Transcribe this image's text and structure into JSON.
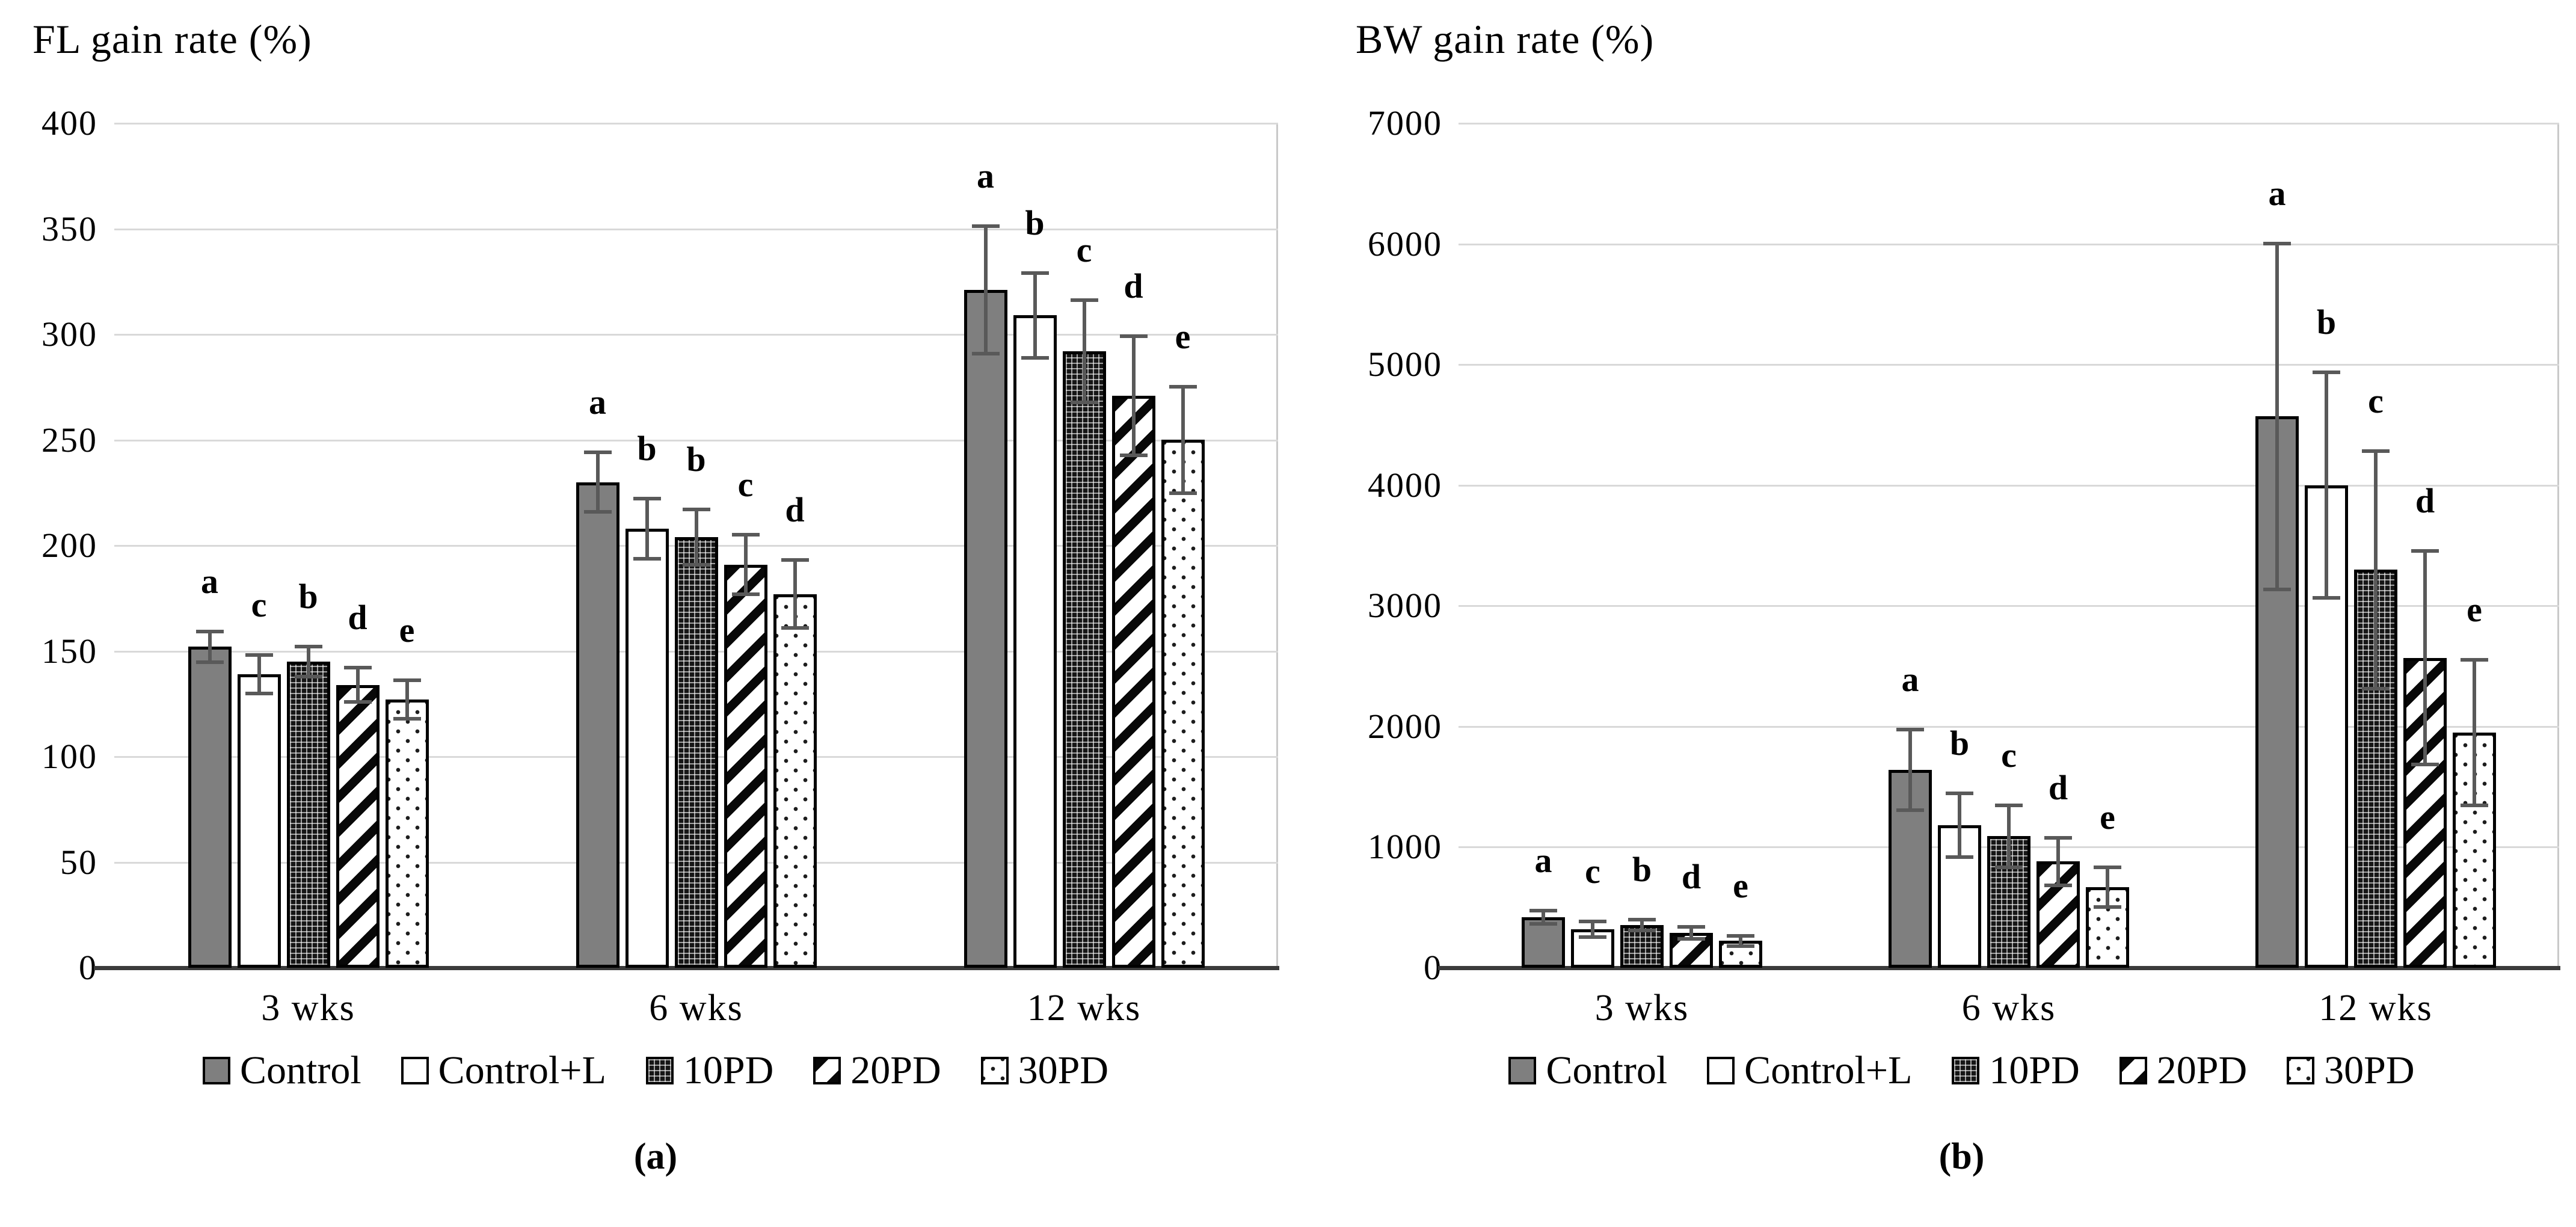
{
  "figure": {
    "captions": {
      "a": "(a)",
      "b": "(b)"
    }
  },
  "chart_data": [
    {
      "type": "bar",
      "title": "FL gain rate (%)",
      "panel_label": "(a)",
      "categories": [
        "3 wks",
        "6 wks",
        "12 wks"
      ],
      "ylim": [
        0,
        400
      ],
      "ytick_step": 50,
      "yticks": [
        "0",
        "50",
        "100",
        "150",
        "200",
        "250",
        "300",
        "350",
        "400"
      ],
      "grid": true,
      "legend_position": "bottom",
      "series": [
        {
          "name": "Control",
          "pattern": "solid-gray",
          "values": [
            152,
            230,
            321
          ],
          "errors": [
            8,
            15,
            31
          ],
          "sig_letters": [
            "a",
            "a",
            "a"
          ]
        },
        {
          "name": "Control+L",
          "pattern": "white",
          "values": [
            139,
            208,
            309
          ],
          "errors": [
            10,
            15,
            21
          ],
          "sig_letters": [
            "c",
            "b",
            "b"
          ]
        },
        {
          "name": "10PD",
          "pattern": "dense-check",
          "values": [
            145,
            204,
            292
          ],
          "errors": [
            8,
            14,
            25
          ],
          "sig_letters": [
            "b",
            "b",
            "c"
          ]
        },
        {
          "name": "20PD",
          "pattern": "diag-stripe",
          "values": [
            134,
            191,
            271
          ],
          "errors": [
            9,
            15,
            29
          ],
          "sig_letters": [
            "d",
            "c",
            "d"
          ]
        },
        {
          "name": "30PD",
          "pattern": "light-dots",
          "values": [
            127,
            177,
            250
          ],
          "errors": [
            10,
            17,
            26
          ],
          "sig_letters": [
            "e",
            "d",
            "e"
          ]
        }
      ]
    },
    {
      "type": "bar",
      "title": "BW gain rate (%)",
      "panel_label": "(b)",
      "categories": [
        "3 wks",
        "6 wks",
        "12 wks"
      ],
      "ylim": [
        0,
        7000
      ],
      "ytick_step": 1000,
      "yticks": [
        "0",
        "1000",
        "2000",
        "3000",
        "4000",
        "5000",
        "6000",
        "7000"
      ],
      "grid": true,
      "legend_position": "bottom",
      "series": [
        {
          "name": "Control",
          "pattern": "solid-gray",
          "values": [
            420,
            1640,
            4570
          ],
          "errors": [
            70,
            350,
            1450
          ],
          "sig_letters": [
            "a",
            "a",
            "a"
          ]
        },
        {
          "name": "Control+L",
          "pattern": "white",
          "values": [
            320,
            1180,
            4000
          ],
          "errors": [
            80,
            280,
            950
          ],
          "sig_letters": [
            "c",
            "b",
            "b"
          ]
        },
        {
          "name": "10PD",
          "pattern": "dense-check",
          "values": [
            355,
            1090,
            3300
          ],
          "errors": [
            60,
            270,
            1000
          ],
          "sig_letters": [
            "b",
            "c",
            "c"
          ]
        },
        {
          "name": "20PD",
          "pattern": "diag-stripe",
          "values": [
            290,
            880,
            2570
          ],
          "errors": [
            65,
            210,
            900
          ],
          "sig_letters": [
            "d",
            "d",
            "d"
          ]
        },
        {
          "name": "30PD",
          "pattern": "light-dots",
          "values": [
            222,
            670,
            1950
          ],
          "errors": [
            55,
            180,
            620
          ],
          "sig_letters": [
            "e",
            "e",
            "e"
          ]
        }
      ]
    }
  ]
}
